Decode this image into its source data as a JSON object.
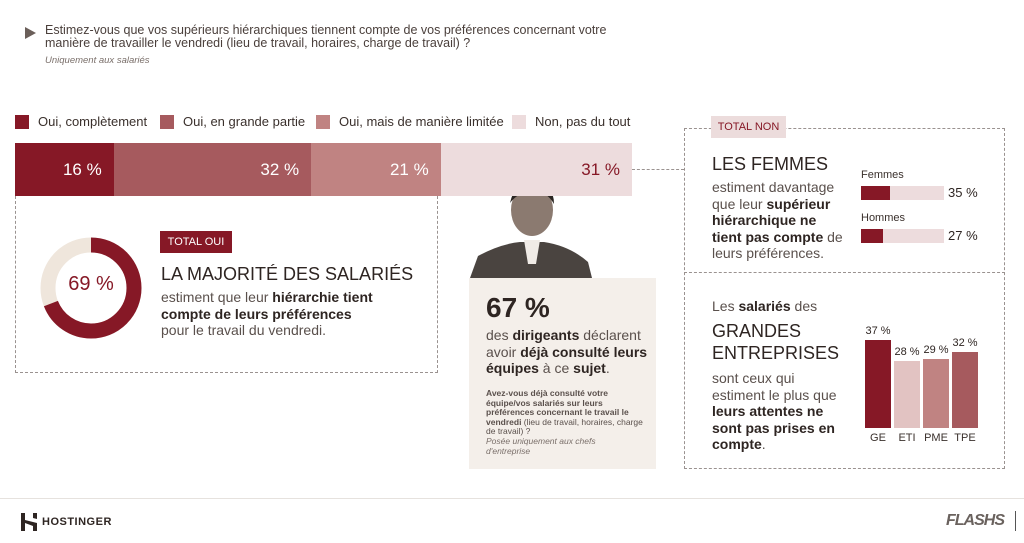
{
  "question": {
    "text": "Estimez-vous que vos supérieurs hiérarchiques tiennent compte de vos préférences concernant votre manière de travailler le vendredi (lieu de travail, horaires, charge de travail) ?",
    "note": "Uniquement aux salariés"
  },
  "colors": {
    "dark": "#861826",
    "mid": "#a65a5e",
    "light": "#c08382",
    "pale": "#eddcdd",
    "beige": "#f4efea",
    "donut_rest": "#efe6dc"
  },
  "chart_data": [
    {
      "type": "bar",
      "orientation": "horizontal-stacked",
      "series": [
        {
          "name": "Oui, complètement",
          "values": [
            16
          ],
          "label": "16 %"
        },
        {
          "name": "Oui, en grande partie",
          "values": [
            32
          ],
          "label": "32 %"
        },
        {
          "name": "Oui, mais de manière limitée",
          "values": [
            21
          ],
          "label": "21 %"
        },
        {
          "name": "Non, pas du tout",
          "values": [
            31
          ],
          "label": "31 %"
        }
      ],
      "legend": "top"
    },
    {
      "type": "pie",
      "variant": "donut",
      "values": [
        69,
        31
      ],
      "label": "69 %"
    },
    {
      "type": "bar",
      "orientation": "horizontal",
      "categories": [
        "Femmes",
        "Hommes"
      ],
      "values": [
        35,
        27
      ],
      "labels": [
        "35 %",
        "27 %"
      ],
      "xlim": [
        0,
        100
      ]
    },
    {
      "type": "bar",
      "categories": [
        "GE",
        "ETI",
        "PME",
        "TPE"
      ],
      "values": [
        37,
        28,
        29,
        32
      ],
      "labels": [
        "37 %",
        "28 %",
        "29 %",
        "32 %"
      ]
    }
  ],
  "total_oui": {
    "tag": "TOTAL OUI",
    "heading": "LA MAJORITÉ DES SALARIÉS",
    "t1": "estiment que leur ",
    "b1": "hiérarchie tient compte de leurs préférences",
    "t2": " pour le travail du vendredi."
  },
  "dirigeants": {
    "big": "67 %",
    "t1": "des ",
    "b1": "dirigeants",
    "t2": " déclarent avoir ",
    "b2": "déjà consulté leurs équipes",
    "t3": " à ce ",
    "b3": "sujet",
    "t4": ".",
    "qb": "Avez-vous déjà consulté votre équipe/vos salariés sur leurs préférences concernant le travail le vendredi",
    "qt": " (lieu de travail, horaires, charge de travail) ?",
    "note": "Posée uniquement aux chefs d'entreprise"
  },
  "total_non": {
    "tag": "TOTAL NON",
    "heading": "LES FEMMES",
    "t1": "estiment davantage que leur ",
    "b1": "supérieur hiérarchique ne tient pas compte",
    "t2": " de leurs préférences."
  },
  "grandes": {
    "t1": "Les ",
    "b1": "salariés",
    "t2": " des",
    "heading": "GRANDES ENTREPRISES",
    "t3": "sont ceux qui estiment le plus que ",
    "b2": "leurs attentes ne sont pas prises en compte",
    "t4": "."
  },
  "footer": {
    "brand": "HOSTINGER",
    "logo_right": "FLASHS"
  }
}
